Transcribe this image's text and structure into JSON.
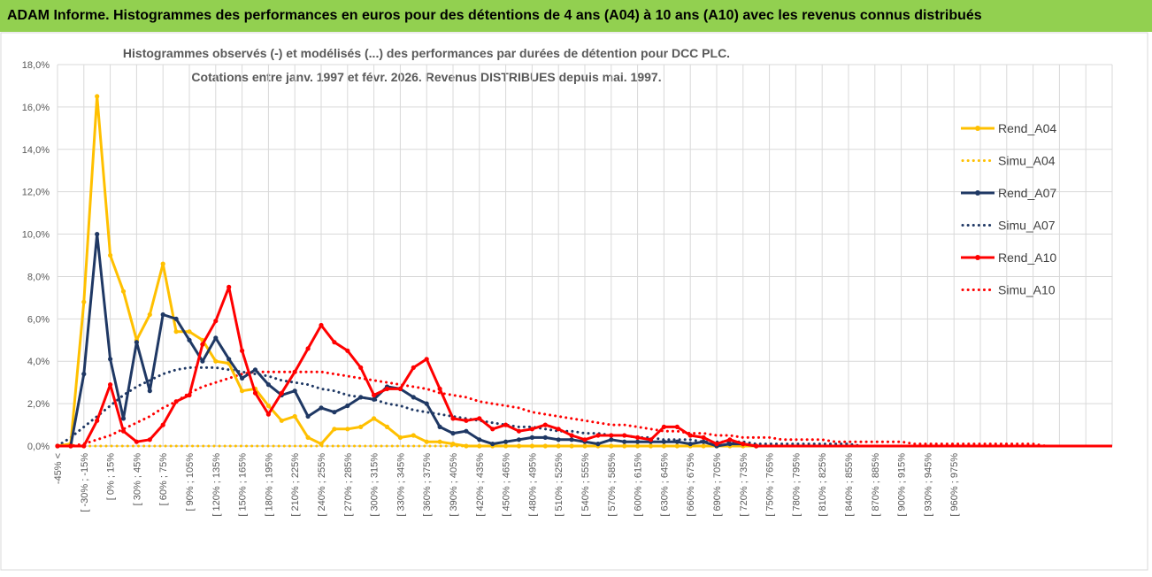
{
  "header": {
    "title": "ADAM Informe. Histogrammes des performances en euros pour des détentions de 4 ans (A04) à 10 ans (A10) avec les revenus connus distribués"
  },
  "chart_data": {
    "type": "line",
    "title_lines": [
      "Histogrammes observés (-) et modélisés (...) des performances par durées de détention pour DCC PLC.",
      "Cotations entre janv. 1997 et févr. 2026. Revenus DISTRIBUES depuis mai. 1997."
    ],
    "ylim": [
      0,
      18
    ],
    "y_ticks": [
      "0,0%",
      "2,0%",
      "4,0%",
      "6,0%",
      "8,0%",
      "10,0%",
      "12,0%",
      "14,0%",
      "16,0%",
      "18,0%"
    ],
    "y_tick_values": [
      0,
      2,
      4,
      6,
      8,
      10,
      12,
      14,
      16,
      18
    ],
    "x_tick_labels": [
      "-45% <",
      "[ -30% ; -15%",
      "[ 0% ; 15%",
      "[ 30% ; 45%",
      "[ 60% ; 75%",
      "[ 90% ; 105%",
      "[ 120% ; 135%",
      "[ 150% ; 165%",
      "[ 180% ; 195%",
      "[ 210% ; 225%",
      "[ 240% ; 255%",
      "[ 270% ; 285%",
      "[ 300% ; 315%",
      "[ 330% ; 345%",
      "[ 360% ; 375%",
      "[ 390% ; 405%",
      "[ 420% ; 435%",
      "[ 450% ; 465%",
      "[ 480% ; 495%",
      "[ 510% ; 525%",
      "[ 540% ; 555%",
      "[ 570% ; 585%",
      "[ 600% ; 615%",
      "[ 630% ; 645%",
      "[ 660% ; 675%",
      "[ 690% ; 705%",
      "[ 720% ; 735%",
      "[ 750% ; 765%",
      "[ 780% ; 795%",
      "[ 810% ; 825%",
      "[ 840% ; 855%",
      "[ 870% ; 885%",
      "[ 900% ; 915%",
      "[ 930% ; 945%",
      "[ 960% ; 975%"
    ],
    "category_count": 81,
    "grid": true,
    "legend_position": "right",
    "series": [
      {
        "name": "Rend_A04",
        "style": "solid-marker",
        "color": "#ffc000",
        "values": [
          0,
          0.1,
          6.8,
          16.5,
          9.0,
          7.3,
          5.0,
          6.2,
          8.6,
          5.4,
          5.4,
          5.0,
          4.0,
          3.9,
          2.6,
          2.7,
          1.9,
          1.2,
          1.4,
          0.4,
          0.1,
          0.8,
          0.8,
          0.9,
          1.3,
          0.9,
          0.4,
          0.5,
          0.2,
          0.2,
          0.1,
          0,
          0,
          0,
          0,
          0,
          0,
          0,
          0,
          0,
          0,
          0,
          0,
          0,
          0,
          0,
          0,
          0,
          0,
          0,
          0,
          0,
          0,
          0,
          0,
          0,
          0,
          0,
          0,
          0,
          0,
          0,
          0,
          0,
          0,
          0,
          0,
          0,
          0,
          0,
          0,
          0,
          0,
          0,
          0,
          0,
          0,
          0,
          0,
          0,
          0
        ]
      },
      {
        "name": "Simu_A04",
        "style": "dotted",
        "color": "#ffc000",
        "values": [
          0,
          0,
          0,
          0,
          0,
          0,
          0,
          0,
          0,
          0,
          0,
          0,
          0,
          0,
          0,
          0,
          0,
          0,
          0,
          0,
          0,
          0,
          0,
          0,
          0,
          0,
          0,
          0,
          0,
          0,
          0,
          0,
          0,
          0,
          0,
          0,
          0,
          0,
          0,
          0,
          0,
          0,
          0,
          0,
          0,
          0,
          0,
          0,
          0,
          0,
          0,
          0,
          0,
          0,
          0,
          0,
          0,
          0,
          0,
          0,
          0,
          0,
          0,
          0,
          0,
          0,
          0,
          0,
          0,
          0,
          0,
          0,
          0,
          0,
          0,
          0,
          0,
          0,
          0,
          0,
          0
        ]
      },
      {
        "name": "Rend_A07",
        "style": "solid-marker",
        "color": "#1f3864",
        "values": [
          0,
          0,
          3.4,
          10.0,
          4.1,
          1.3,
          4.9,
          2.6,
          6.2,
          6.0,
          5.0,
          4.0,
          5.1,
          4.1,
          3.2,
          3.6,
          2.9,
          2.4,
          2.6,
          1.4,
          1.8,
          1.6,
          1.9,
          2.3,
          2.2,
          2.8,
          2.7,
          2.3,
          2.0,
          0.9,
          0.6,
          0.7,
          0.3,
          0.1,
          0.2,
          0.3,
          0.4,
          0.4,
          0.3,
          0.3,
          0.2,
          0.1,
          0.3,
          0.2,
          0.2,
          0.2,
          0.2,
          0.2,
          0.1,
          0.2,
          0.0,
          0.1,
          0.1,
          0,
          0,
          0,
          0,
          0,
          0,
          0,
          0,
          0,
          0,
          0,
          0,
          0,
          0,
          0,
          0,
          0,
          0,
          0,
          0,
          0,
          0,
          0,
          0,
          0,
          0,
          0,
          0
        ]
      },
      {
        "name": "Simu_A07",
        "style": "dotted",
        "color": "#1f3864",
        "values": [
          0.0,
          0.4,
          0.9,
          1.4,
          1.9,
          2.4,
          2.8,
          3.1,
          3.4,
          3.6,
          3.7,
          3.7,
          3.7,
          3.6,
          3.5,
          3.4,
          3.3,
          3.1,
          3.0,
          2.9,
          2.7,
          2.6,
          2.4,
          2.3,
          2.2,
          2.0,
          1.9,
          1.7,
          1.6,
          1.5,
          1.4,
          1.3,
          1.2,
          1.1,
          1.0,
          0.9,
          0.9,
          0.8,
          0.7,
          0.7,
          0.6,
          0.6,
          0.5,
          0.5,
          0.4,
          0.4,
          0.3,
          0.3,
          0.3,
          0.2,
          0.2,
          0.2,
          0.2,
          0.1,
          0.1,
          0.1,
          0.1,
          0.1,
          0.1,
          0.1,
          0.1,
          0.0,
          0.0,
          0.0,
          0.0,
          0.0,
          0.0,
          0.0,
          0.0,
          0.0,
          0.0,
          0.0,
          0.0,
          0.0,
          0.0,
          0.0,
          0.0,
          0.0,
          0.0,
          0.0,
          0.0
        ]
      },
      {
        "name": "Rend_A10",
        "style": "solid-marker",
        "color": "#ff0000",
        "values": [
          0,
          0,
          0,
          1.2,
          2.9,
          0.7,
          0.2,
          0.3,
          1.0,
          2.1,
          2.4,
          4.8,
          5.9,
          7.5,
          4.5,
          2.5,
          1.5,
          2.5,
          3.5,
          4.6,
          5.7,
          4.9,
          4.5,
          3.7,
          2.4,
          2.7,
          2.7,
          3.7,
          4.1,
          2.7,
          1.3,
          1.2,
          1.3,
          0.8,
          1.0,
          0.7,
          0.8,
          1.0,
          0.8,
          0.5,
          0.3,
          0.5,
          0.5,
          0.5,
          0.4,
          0.3,
          0.9,
          0.9,
          0.5,
          0.4,
          0.1,
          0.3,
          0.1,
          0,
          0,
          0,
          0,
          0,
          0,
          0,
          0,
          0,
          0,
          0,
          0,
          0,
          0,
          0,
          0,
          0,
          0,
          0,
          0,
          0,
          0,
          0,
          0,
          0,
          0,
          0,
          0
        ]
      },
      {
        "name": "Simu_A10",
        "style": "dotted",
        "color": "#ff0000",
        "values": [
          0.0,
          0.0,
          0.1,
          0.3,
          0.5,
          0.8,
          1.1,
          1.4,
          1.8,
          2.1,
          2.5,
          2.8,
          3.0,
          3.2,
          3.4,
          3.5,
          3.5,
          3.5,
          3.5,
          3.5,
          3.5,
          3.4,
          3.3,
          3.2,
          3.1,
          3.0,
          2.9,
          2.8,
          2.7,
          2.5,
          2.4,
          2.3,
          2.1,
          2.0,
          1.9,
          1.8,
          1.6,
          1.5,
          1.4,
          1.3,
          1.2,
          1.1,
          1.0,
          1.0,
          0.9,
          0.8,
          0.7,
          0.7,
          0.6,
          0.6,
          0.5,
          0.5,
          0.4,
          0.4,
          0.4,
          0.3,
          0.3,
          0.3,
          0.3,
          0.2,
          0.2,
          0.2,
          0.2,
          0.2,
          0.2,
          0.1,
          0.1,
          0.1,
          0.1,
          0.1,
          0.1,
          0.1,
          0.1,
          0.1,
          0.1,
          0.0,
          0.0,
          0.0,
          0.0,
          0.0,
          0.0
        ]
      }
    ]
  }
}
